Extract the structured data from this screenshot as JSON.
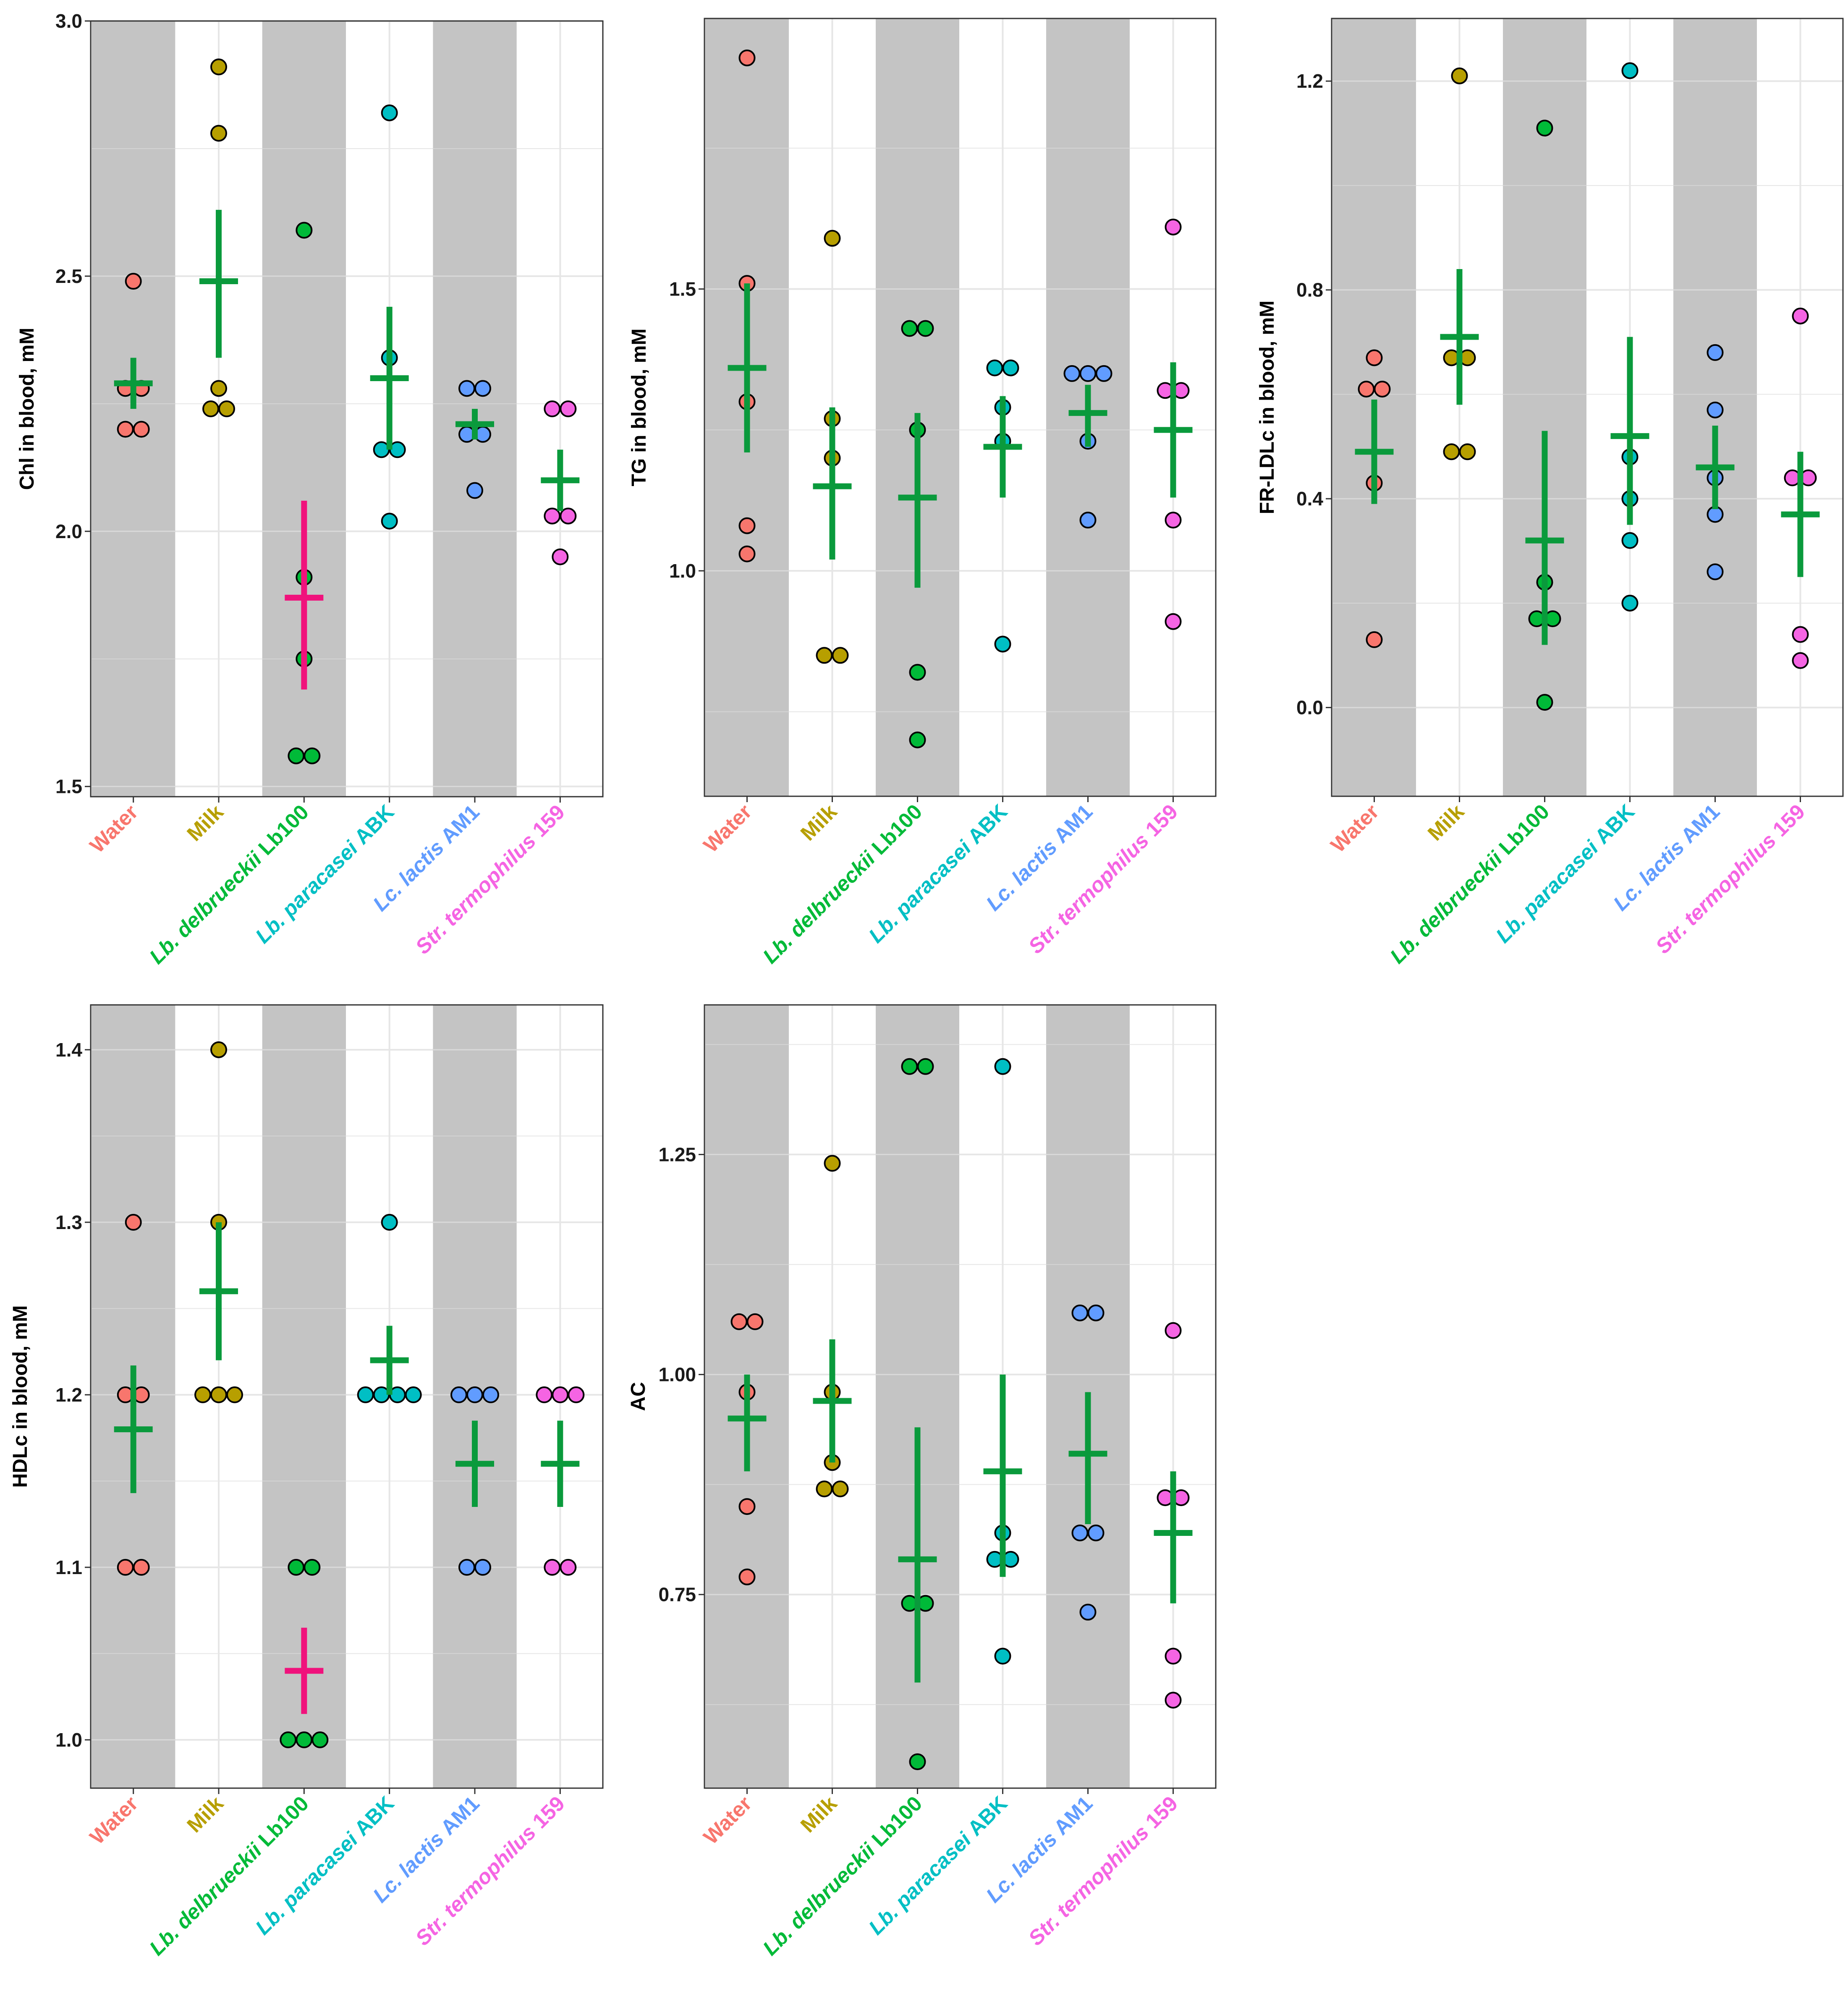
{
  "chart_data": [
    {
      "type": "scatter",
      "title": "",
      "ylabel": "Chl in blood, mM",
      "ylim": [
        1.48,
        3.0
      ],
      "yticks": [
        1.5,
        2.0,
        2.5,
        3.0
      ],
      "ytick_labels": [
        "1.5",
        "2.0",
        "2.5",
        "3.0"
      ],
      "categories": [
        "Water",
        "Milk",
        "Lb. delbrueckii Lb100",
        "Lb. paracasei ABK",
        "Lc. lactis AM1",
        "Str. termophilus 159"
      ],
      "points": [
        [
          2.2,
          2.2,
          2.28,
          2.28,
          2.49
        ],
        [
          2.24,
          2.24,
          2.28,
          2.78,
          2.91
        ],
        [
          1.56,
          1.56,
          1.75,
          1.91,
          2.59
        ],
        [
          2.02,
          2.16,
          2.16,
          2.34,
          2.82
        ],
        [
          2.08,
          2.19,
          2.19,
          2.28,
          2.28
        ],
        [
          1.95,
          2.03,
          2.03,
          2.24,
          2.24
        ]
      ],
      "means": [
        2.29,
        2.49,
        1.87,
        2.3,
        2.21,
        2.1
      ],
      "errors": [
        [
          2.24,
          2.34
        ],
        [
          2.34,
          2.63
        ],
        [
          1.69,
          2.06
        ],
        [
          2.16,
          2.44
        ],
        [
          2.18,
          2.24
        ],
        [
          2.04,
          2.16
        ]
      ],
      "significant": [
        false,
        false,
        true,
        false,
        false,
        false
      ]
    },
    {
      "type": "scatter",
      "title": "",
      "ylabel": "TG in blood, mM",
      "ylim": [
        0.6,
        1.98
      ],
      "yticks": [
        1.0,
        1.5
      ],
      "ytick_labels": [
        "1.0",
        "1.5"
      ],
      "categories": [
        "Water",
        "Milk",
        "Lb. delbrueckii Lb100",
        "Lb. paracasei ABK",
        "Lc. lactis AM1",
        "Str. termophilus 159"
      ],
      "points": [
        [
          1.03,
          1.08,
          1.3,
          1.51,
          1.91
        ],
        [
          0.85,
          0.85,
          1.2,
          1.27,
          1.59
        ],
        [
          0.7,
          0.82,
          1.25,
          1.43,
          1.43
        ],
        [
          0.87,
          1.23,
          1.29,
          1.36,
          1.36
        ],
        [
          1.09,
          1.23,
          1.35,
          1.35,
          1.35
        ],
        [
          0.91,
          1.09,
          1.32,
          1.32,
          1.61
        ]
      ],
      "means": [
        1.36,
        1.15,
        1.13,
        1.22,
        1.28,
        1.25
      ],
      "errors": [
        [
          1.21,
          1.51
        ],
        [
          1.02,
          1.29
        ],
        [
          0.97,
          1.28
        ],
        [
          1.13,
          1.31
        ],
        [
          1.22,
          1.33
        ],
        [
          1.13,
          1.37
        ]
      ],
      "significant": [
        false,
        false,
        false,
        false,
        false,
        false
      ]
    },
    {
      "type": "scatter",
      "title": "",
      "ylabel": "FR-LDLc in blood, mM",
      "ylim": [
        -0.17,
        1.32
      ],
      "yticks": [
        0.0,
        0.4,
        0.8,
        1.2
      ],
      "ytick_labels": [
        "0.0",
        "0.4",
        "0.8",
        "1.2"
      ],
      "categories": [
        "Water",
        "Milk",
        "Lb. delbrueckii Lb100",
        "Lb. paracasei ABK",
        "Lc. lactis AM1",
        "Str. termophilus 159"
      ],
      "points": [
        [
          0.13,
          0.43,
          0.61,
          0.61,
          0.67
        ],
        [
          0.49,
          0.49,
          0.67,
          0.67,
          1.21
        ],
        [
          0.01,
          0.17,
          0.17,
          0.24,
          1.11
        ],
        [
          0.2,
          0.32,
          0.4,
          0.48,
          1.22
        ],
        [
          0.26,
          0.37,
          0.44,
          0.57,
          0.68
        ],
        [
          0.09,
          0.14,
          0.44,
          0.44,
          0.75
        ]
      ],
      "means": [
        0.49,
        0.71,
        0.32,
        0.52,
        0.46,
        0.37
      ],
      "errors": [
        [
          0.39,
          0.59
        ],
        [
          0.58,
          0.84
        ],
        [
          0.12,
          0.53
        ],
        [
          0.35,
          0.71
        ],
        [
          0.38,
          0.54
        ],
        [
          0.25,
          0.49
        ]
      ],
      "significant": [
        false,
        false,
        false,
        false,
        false,
        false
      ]
    },
    {
      "type": "scatter",
      "title": "",
      "ylabel": "HDLc in blood, mM",
      "ylim": [
        0.972,
        1.426
      ],
      "yticks": [
        1.0,
        1.1,
        1.2,
        1.3,
        1.4
      ],
      "ytick_labels": [
        "1.0",
        "1.1",
        "1.2",
        "1.3",
        "1.4"
      ],
      "categories": [
        "Water",
        "Milk",
        "Lb. delbrueckii Lb100",
        "Lb. paracasei ABK",
        "Lc. lactis AM1",
        "Str. termophilus 159"
      ],
      "points": [
        [
          1.1,
          1.1,
          1.2,
          1.2,
          1.3
        ],
        [
          1.2,
          1.2,
          1.2,
          1.3,
          1.4
        ],
        [
          1.0,
          1.0,
          1.0,
          1.1,
          1.1
        ],
        [
          1.2,
          1.2,
          1.2,
          1.2,
          1.3
        ],
        [
          1.1,
          1.1,
          1.2,
          1.2,
          1.2
        ],
        [
          1.1,
          1.1,
          1.2,
          1.2,
          1.2
        ]
      ],
      "means": [
        1.18,
        1.26,
        1.04,
        1.22,
        1.16,
        1.16
      ],
      "errors": [
        [
          1.143,
          1.217
        ],
        [
          1.22,
          1.3
        ],
        [
          1.015,
          1.065
        ],
        [
          1.2,
          1.24
        ],
        [
          1.135,
          1.185
        ],
        [
          1.135,
          1.185
        ]
      ],
      "significant": [
        false,
        false,
        true,
        false,
        false,
        false
      ]
    },
    {
      "type": "scatter",
      "title": "",
      "ylabel": "AC",
      "ylim": [
        0.53,
        1.42
      ],
      "yticks": [
        0.75,
        1.0,
        1.25
      ],
      "ytick_labels": [
        "0.75",
        "1.00",
        "1.25"
      ],
      "categories": [
        "Water",
        "Milk",
        "Lb. delbrueckii Lb100",
        "Lb. paracasei ABK",
        "Lc. lactis AM1",
        "Str. termophilus 159"
      ],
      "points": [
        [
          0.77,
          0.85,
          0.98,
          1.06,
          1.06
        ],
        [
          0.87,
          0.87,
          0.9,
          0.98,
          1.24
        ],
        [
          0.56,
          0.74,
          0.74,
          1.35,
          1.35
        ],
        [
          0.68,
          0.79,
          0.79,
          0.82,
          1.35
        ],
        [
          0.73,
          0.82,
          0.82,
          1.07,
          1.07
        ],
        [
          0.63,
          0.68,
          0.86,
          0.86,
          1.05
        ]
      ],
      "means": [
        0.95,
        0.97,
        0.79,
        0.89,
        0.91,
        0.82
      ],
      "errors": [
        [
          0.89,
          1.0
        ],
        [
          0.9,
          1.04
        ],
        [
          0.65,
          0.94
        ],
        [
          0.77,
          1.0
        ],
        [
          0.83,
          0.98
        ],
        [
          0.74,
          0.89
        ]
      ],
      "significant": [
        false,
        false,
        false,
        false,
        false,
        false
      ]
    }
  ],
  "groups": [
    {
      "label": "Water",
      "parts": [
        {
          "text": "Water",
          "italic": false
        }
      ],
      "color": "#F8766D"
    },
    {
      "label": "Milk",
      "parts": [
        {
          "text": "Milk",
          "italic": false
        }
      ],
      "color": "#B79F00"
    },
    {
      "label": "Lb. delbrueckii Lb100",
      "parts": [
        {
          "text": "Lb. delbrueckii ",
          "italic": true
        },
        {
          "text": "Lb100",
          "italic": false
        }
      ],
      "color": "#00BA38"
    },
    {
      "label": "Lb. paracasei ABK",
      "parts": [
        {
          "text": "Lb. paracasei ",
          "italic": true
        },
        {
          "text": "ABK",
          "italic": false
        }
      ],
      "color": "#00BFC4"
    },
    {
      "label": "Lc. lactis AM1",
      "parts": [
        {
          "text": "Lc. lactis ",
          "italic": true
        },
        {
          "text": "AM1",
          "italic": false
        }
      ],
      "color": "#619CFF"
    },
    {
      "label": "Str. termophilus 159",
      "parts": [
        {
          "text": "Str. termophilus ",
          "italic": true
        },
        {
          "text": "159",
          "italic": false
        }
      ],
      "color": "#F564E3"
    }
  ],
  "colors": {
    "shade": "#C4C4C4",
    "grid": "#E6E6E6",
    "grid_on_shade": "#D9D9D9",
    "mean_normal": "#0A9A3C",
    "mean_significant": "#F0127C",
    "point_outline": "#000000"
  }
}
